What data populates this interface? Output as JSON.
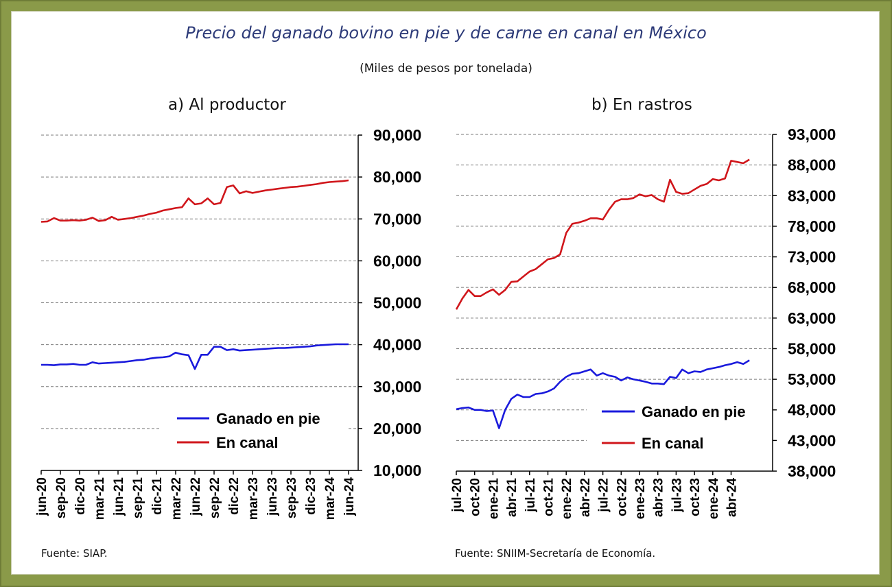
{
  "title": "Precio del ganado bovino en pie y de carne en canal en México",
  "subtitle": "(Miles de pesos por tonelada)",
  "colors": {
    "frame": "#8a9a49",
    "title": "#2c3a78",
    "ganado": "#1a1adc",
    "canal": "#d0161b"
  },
  "chart_data": [
    {
      "type": "line",
      "panel_title": "a)    Al productor",
      "source": "Fuente: SIAP.",
      "y_ticks": [
        "90,000",
        "80,000",
        "70,000",
        "60,000",
        "50,000",
        "40,000",
        "30,000",
        "20,000",
        "10,000"
      ],
      "ylim": [
        10000,
        90000
      ],
      "y_axis_side": "right",
      "x_tick_labels": [
        "jun-20",
        "sep-20",
        "dic-20",
        "mar-21",
        "jun-21",
        "sep-21",
        "dic-21",
        "mar-22",
        "jun-22",
        "sep-22",
        "dic-22",
        "mar-23",
        "jun-23",
        "sep-23",
        "dic-23",
        "mar-24",
        "jun-24"
      ],
      "x_start": "jun-20",
      "legend_position": "bottom-right",
      "grid": "horizontal-dashed",
      "series": [
        {
          "name": "Ganado en pie",
          "color": "#1a1adc",
          "values": [
            35200,
            35200,
            35100,
            35300,
            35300,
            35400,
            35200,
            35200,
            35800,
            35500,
            35600,
            35700,
            35800,
            35900,
            36100,
            36300,
            36400,
            36700,
            36900,
            37000,
            37200,
            38100,
            37700,
            37500,
            34200,
            37600,
            37600,
            39500,
            39500,
            38700,
            38900,
            38600,
            38700,
            38800,
            38900,
            39000,
            39100,
            39200,
            39200,
            39300,
            39400,
            39500,
            39600,
            39800,
            39900,
            40000,
            40100,
            40100,
            40100
          ]
        },
        {
          "name": "En canal",
          "color": "#d0161b",
          "values": [
            69300,
            69400,
            70200,
            69600,
            69600,
            69700,
            69600,
            69800,
            70300,
            69500,
            69700,
            70500,
            69800,
            70000,
            70200,
            70500,
            70800,
            71200,
            71500,
            72000,
            72300,
            72600,
            72800,
            74900,
            73500,
            73700,
            74900,
            73500,
            73800,
            77600,
            78000,
            76100,
            76600,
            76200,
            76500,
            76800,
            77000,
            77200,
            77400,
            77600,
            77700,
            77900,
            78100,
            78300,
            78600,
            78800,
            78900,
            79000,
            79200
          ]
        }
      ]
    },
    {
      "type": "line",
      "panel_title": "b)    En rastros",
      "source": "Fuente: SNIIM-Secretaría de Economía.",
      "y_ticks": [
        "93,000",
        "88,000",
        "83,000",
        "78,000",
        "73,000",
        "68,000",
        "63,000",
        "58,000",
        "53,000",
        "48,000",
        "43,000",
        "38,000"
      ],
      "ylim": [
        38000,
        93000
      ],
      "y_axis_side": "right",
      "x_tick_labels": [
        "jul-20",
        "oct-20",
        "ene-21",
        "abr-21",
        "jul-21",
        "oct-21",
        "ene-22",
        "abr-22",
        "jul-22",
        "oct-22",
        "ene-23",
        "abr-23",
        "jul-23",
        "oct-23",
        "ene-24",
        "abr-24"
      ],
      "x_start": "jul-20",
      "legend_position": "bottom-right",
      "grid": "horizontal-dashed",
      "series": [
        {
          "name": "Ganado en pie",
          "color": "#1a1adc",
          "values": [
            48100,
            48300,
            48400,
            48000,
            48000,
            47800,
            47900,
            45000,
            48000,
            49800,
            50500,
            50100,
            50100,
            50600,
            50700,
            51000,
            51500,
            52600,
            53400,
            53900,
            54000,
            54300,
            54600,
            53600,
            54000,
            53600,
            53400,
            52800,
            53300,
            53000,
            52800,
            52600,
            52300,
            52300,
            52200,
            53400,
            53200,
            54600,
            54000,
            54300,
            54200,
            54600,
            54800,
            55000,
            55300,
            55500,
            55800,
            55500,
            56100
          ]
        },
        {
          "name": "En canal",
          "color": "#d0161b",
          "values": [
            64400,
            66200,
            67600,
            66600,
            66600,
            67200,
            67700,
            66800,
            67600,
            68900,
            69000,
            69800,
            70600,
            71000,
            71800,
            72600,
            72800,
            73400,
            76900,
            78400,
            78600,
            78900,
            79300,
            79300,
            79100,
            80700,
            82000,
            82400,
            82400,
            82600,
            83200,
            82900,
            83100,
            82400,
            82000,
            85600,
            83600,
            83300,
            83400,
            84000,
            84600,
            84900,
            85700,
            85500,
            85800,
            88700,
            88500,
            88300,
            88900
          ]
        }
      ]
    }
  ]
}
